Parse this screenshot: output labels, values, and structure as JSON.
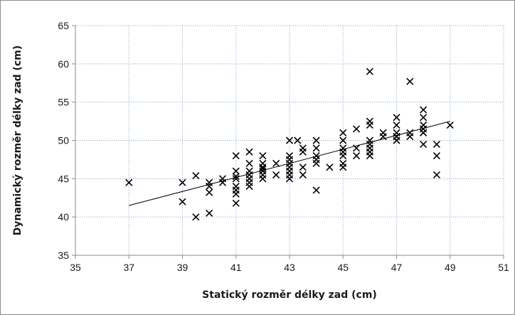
{
  "chart_data": {
    "type": "scatter",
    "title": "",
    "xlabel": "Statický rozměr délky zad (cm)",
    "ylabel": "Dynamický rozměr délky zad (cm)",
    "xlim": [
      35,
      51
    ],
    "ylim": [
      35,
      65
    ],
    "x_ticks": [
      35,
      37,
      39,
      41,
      43,
      45,
      47,
      49,
      51
    ],
    "y_ticks": [
      35,
      40,
      45,
      50,
      55,
      60,
      65
    ],
    "grid": true,
    "legend": "none",
    "marker": "x",
    "point_color": "#000000",
    "grid_color": "#7aa3d6",
    "trendline": {
      "type": "linear",
      "x": [
        37,
        49
      ],
      "y": [
        41.5,
        52.5
      ]
    },
    "series": [
      {
        "x": [
          37,
          39,
          39,
          39.5,
          39.5,
          40,
          40,
          40,
          40,
          40.5,
          40.5,
          41,
          41,
          41,
          41,
          41,
          41,
          41,
          41,
          41.5,
          41.5,
          41.5,
          41.5,
          41.5,
          41.5,
          41.5,
          42,
          42,
          42,
          42,
          42,
          42,
          42,
          42.5,
          42.5,
          43,
          43,
          43,
          43,
          43,
          43,
          43,
          43,
          43.3,
          43.5,
          43.5,
          43.5,
          43.5,
          44,
          44,
          44,
          44,
          44,
          44,
          44.5,
          45,
          45,
          45,
          45,
          45,
          45,
          45,
          45.5,
          45.5,
          45.5,
          46,
          46,
          46,
          46,
          46,
          46,
          46,
          46,
          46.5,
          46.5,
          47,
          47,
          47,
          47,
          47,
          47,
          47.5,
          47.5,
          47.5,
          48,
          48,
          48,
          48,
          48,
          48,
          48,
          48.5,
          48.5,
          48.5,
          49
        ],
        "y": [
          44.5,
          44.5,
          42,
          45.4,
          40,
          44.5,
          44,
          43.2,
          40.5,
          45,
          44.5,
          48,
          46,
          45,
          44,
          43.5,
          43,
          41.8,
          45.3,
          48.5,
          47,
          46,
          45.5,
          45,
          44.5,
          44,
          48,
          47,
          46.5,
          46,
          45.5,
          45,
          46.3,
          47,
          45.5,
          50,
          48,
          47.5,
          47,
          46.5,
          46,
          45.5,
          45,
          50,
          49,
          48.5,
          46.5,
          45.5,
          50,
          49,
          48,
          47.5,
          47,
          43.5,
          46.5,
          51,
          50,
          49,
          48.5,
          48,
          47,
          46.5,
          51.5,
          49,
          48,
          59,
          52.5,
          52,
          50,
          49.5,
          49,
          48.5,
          48,
          51,
          50.5,
          53,
          52,
          51,
          50.5,
          50,
          50.5,
          57.7,
          51,
          50.5,
          54,
          53,
          52,
          51.5,
          51,
          49.5,
          51,
          49.5,
          48,
          45.5,
          52
        ]
      }
    ]
  }
}
